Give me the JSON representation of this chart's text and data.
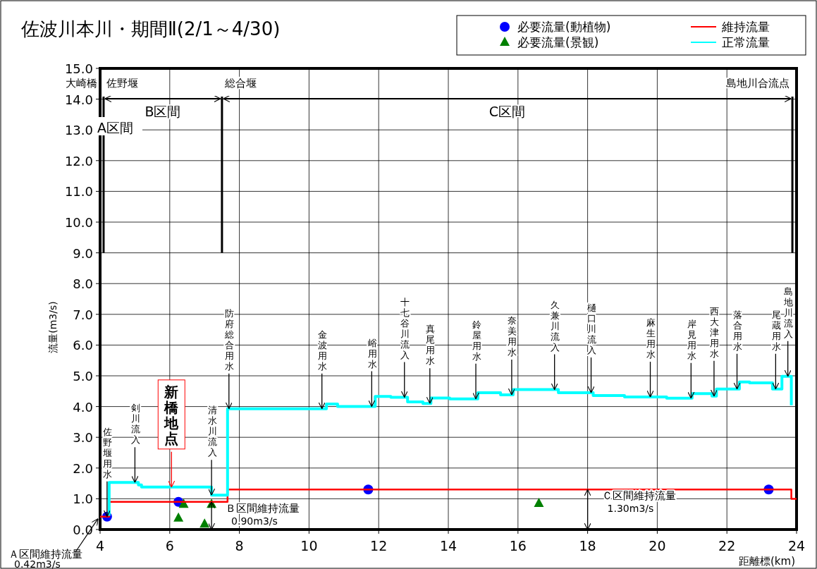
{
  "chart_data": {
    "type": "step",
    "title": "佐波川本川・期間Ⅱ(2/1～4/30)",
    "xlabel": "距離標(km)",
    "ylabel": "流量(m3/s)",
    "xlim": [
      4,
      24
    ],
    "xticks": [
      4,
      6,
      8,
      10,
      12,
      14,
      16,
      18,
      20,
      22,
      24
    ],
    "ylim": [
      0,
      15
    ],
    "yticks": [
      {
        "value": 0,
        "label": "0.0"
      },
      {
        "value": 1,
        "label": "1.0"
      },
      {
        "value": 2,
        "label": "2.0"
      },
      {
        "value": 3,
        "label": "3.0"
      },
      {
        "value": 4,
        "label": "4.0"
      },
      {
        "value": 5,
        "label": "5.0"
      },
      {
        "value": 6,
        "label": "6.0"
      },
      {
        "value": 7,
        "label": "7.0"
      },
      {
        "value": 8,
        "label": "8.0"
      },
      {
        "value": 9,
        "label": "9.0"
      },
      {
        "value": 10,
        "label": "10.0"
      },
      {
        "value": 11,
        "label": "11.0"
      },
      {
        "value": 12,
        "label": "12.0"
      },
      {
        "value": 13,
        "label": "13.0"
      },
      {
        "value": 14,
        "label": "14.0"
      },
      {
        "value": 15,
        "label": "15.0"
      }
    ],
    "grid": true,
    "legend": "top right",
    "series": [
      {
        "name": "必要流量(動植物)",
        "type": "scatter",
        "marker": "circle",
        "color": "#0000ff",
        "x": [
          4.2,
          6.25,
          11.7,
          23.2
        ],
        "values": [
          0.42,
          0.9,
          1.3,
          1.3
        ]
      },
      {
        "name": "必要流量(景観)",
        "type": "scatter",
        "marker": "triangle",
        "color": "#008000",
        "x": [
          6.25,
          6.4,
          7.0,
          7.2,
          16.6
        ],
        "values": [
          0.37,
          0.82,
          0.18,
          0.82,
          0.85
        ]
      },
      {
        "name": "維持流量",
        "color": "#ff0000",
        "x": [
          4,
          4.26,
          7.66,
          23.85,
          24
        ],
        "values": [
          0.42,
          0.9,
          1.3,
          1.0,
          1.0
        ]
      },
      {
        "name": "正常流量",
        "color": "#00ffff",
        "x": [
          4.26,
          4.26,
          5.1,
          5.19,
          7.2,
          7.66,
          10.5,
          10.82,
          11.9,
          12.35,
          12.83,
          13.27,
          13.5,
          14.04,
          14.85,
          15.5,
          15.86,
          17.16,
          18.16,
          19.06,
          20.27,
          21.0,
          21.57,
          21.7,
          22.36,
          22.65,
          23.31,
          23.58,
          23.85
        ],
        "values": [
          0.45,
          1.53,
          1.45,
          1.38,
          1.12,
          3.93,
          4.08,
          4.0,
          4.33,
          4.3,
          4.15,
          4.1,
          4.28,
          4.25,
          4.45,
          4.38,
          4.55,
          4.45,
          4.36,
          4.31,
          4.27,
          4.42,
          4.34,
          4.57,
          4.8,
          4.77,
          4.57,
          4.98,
          4.04
        ]
      }
    ],
    "ref_lines": [
      {
        "axis": "x",
        "value": 4.1,
        "label": "佐野堰",
        "color": "#000000"
      },
      {
        "axis": "x",
        "value": 7.5,
        "label": "総合堰",
        "color": "#000000"
      },
      {
        "axis": "x",
        "value": 23.88,
        "label": "島地川合流点",
        "color": "#000000"
      }
    ],
    "annotations": [
      "大崎橋",
      "A区間",
      "B区間",
      "C区間",
      {
        "text": "佐野堰用水",
        "x": 4.2,
        "y": 0.42
      },
      {
        "text": "剣川流入",
        "x": 5.0,
        "y": 1.53
      },
      {
        "text": "新橋地点",
        "x": 6.05,
        "y": 1.38
      },
      {
        "text": "清水川流入",
        "x": 7.2,
        "y": 1.12
      },
      {
        "text": "防府総合用水",
        "x": 7.7,
        "y": 3.93
      },
      {
        "text": "金波用水",
        "x": 10.37,
        "y": 3.93
      },
      {
        "text": "峪用水",
        "x": 11.8,
        "y": 4.0
      },
      {
        "text": "十七谷川流入",
        "x": 12.74,
        "y": 4.3
      },
      {
        "text": "真尾用水",
        "x": 13.47,
        "y": 4.1
      },
      {
        "text": "鈴屋用水",
        "x": 14.79,
        "y": 4.25
      },
      {
        "text": "奈美用水",
        "x": 15.82,
        "y": 4.38
      },
      {
        "text": "久兼川流入",
        "x": 17.05,
        "y": 4.55
      },
      {
        "text": "樋口川流入",
        "x": 18.1,
        "y": 4.45
      },
      {
        "text": "麻生用水",
        "x": 19.8,
        "y": 4.31
      },
      {
        "text": "岸見用水",
        "x": 20.97,
        "y": 4.27
      },
      {
        "text": "西大津用水",
        "x": 21.63,
        "y": 4.34
      },
      {
        "text": "落合用水",
        "x": 22.29,
        "y": 4.57
      },
      {
        "text": "尾蔵用水",
        "x": 23.4,
        "y": 4.57
      },
      {
        "text": "島地川流入",
        "x": 23.75,
        "y": 4.98
      },
      {
        "text": "Ｂ区間維持流量\n0.90m3/s",
        "x": 7.2,
        "y": 0.9
      },
      {
        "text": "Ｃ区間維持流量\n1.30m3/s",
        "x": 18.0,
        "y": 1.3
      },
      {
        "text": "Ａ区間維持流量\n0.42m3/s",
        "x": 4.0,
        "y": 0.42
      }
    ]
  }
}
